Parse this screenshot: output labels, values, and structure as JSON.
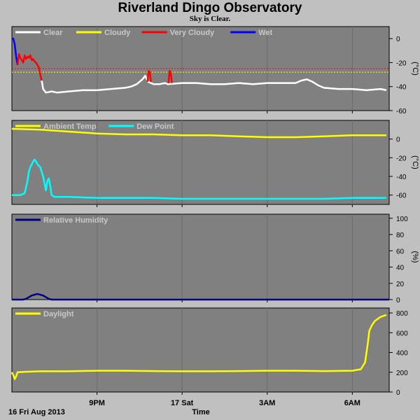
{
  "header": {
    "title": "Riverland Dingo Observatory",
    "subtitle": "Sky is Clear."
  },
  "xaxis": {
    "date_label": "16 Fri Aug 2013",
    "title": "Time",
    "ticks": [
      {
        "label": "9PM",
        "hour": 3
      },
      {
        "label": "17 Sat",
        "hour": 6
      },
      {
        "label": "3AM",
        "hour": 9
      },
      {
        "label": "6AM",
        "hour": 12
      }
    ],
    "range_hours": [
      0,
      13.3
    ]
  },
  "colors": {
    "plot_bg": "#808080",
    "frame_bg": "#c0c0c0",
    "clear": "#ffffff",
    "cloudy": "#ffff00",
    "very_cloudy": "#ff0000",
    "wet": "#0000ff",
    "ambient": "#ffff00",
    "dew": "#00ffff",
    "humidity": "#000080",
    "daylight": "#ffff00"
  },
  "chart_data": [
    {
      "type": "line",
      "panel": "sky",
      "unit": "(°C)",
      "ylim": [
        -60,
        10
      ],
      "yticks": [
        0,
        -20,
        -40,
        -60
      ],
      "threshold_lines": [
        {
          "y": -25,
          "color": "#ff0000"
        },
        {
          "y": -28,
          "color": "#ffff00"
        }
      ],
      "legend": [
        "Clear",
        "Cloudy",
        "Very Cloudy",
        "Wet"
      ],
      "series": [
        {
          "name": "Wet",
          "color_key": "wet",
          "x": [
            0.0,
            0.05,
            0.1,
            0.15,
            0.2
          ],
          "y": [
            0,
            0,
            -5,
            -15,
            -22
          ]
        },
        {
          "name": "Very Cloudy",
          "color_key": "very_cloudy",
          "x": [
            0.2,
            0.25,
            0.3,
            0.35,
            0.4,
            0.45,
            0.5,
            0.55,
            0.6,
            0.65,
            0.7,
            0.75,
            0.8,
            0.85,
            0.9,
            0.95,
            1.0,
            1.05
          ],
          "y": [
            -22,
            -13,
            -16,
            -18,
            -20,
            -14,
            -17,
            -15,
            -16,
            -14,
            -18,
            -17,
            -19,
            -20,
            -22,
            -24,
            -30,
            -35
          ]
        },
        {
          "name": "Clear",
          "color_key": "clear",
          "x": [
            1.05,
            1.1,
            1.2,
            1.4,
            1.6,
            2.0,
            2.5,
            3.0,
            3.5,
            4.0,
            4.2,
            4.4,
            4.6,
            4.7,
            4.8,
            5.0,
            5.2,
            5.4,
            5.5,
            6.0,
            6.5,
            7.0,
            7.5,
            8.0,
            8.5,
            9.0,
            9.5,
            10.0,
            10.2,
            10.4,
            10.6,
            10.8,
            11.0,
            11.5,
            12.0,
            12.5,
            13.0,
            13.2
          ],
          "y": [
            -35,
            -42,
            -45,
            -44,
            -45,
            -44,
            -43,
            -43,
            -42,
            -41,
            -40,
            -38,
            -34,
            -31,
            -36,
            -38,
            -38,
            -37,
            -38,
            -37,
            -37,
            -38,
            -38,
            -37,
            -38,
            -37,
            -37,
            -37,
            -35,
            -34,
            -36,
            -39,
            -41,
            -42,
            -42,
            -43,
            -42,
            -43
          ]
        },
        {
          "name": "Very Cloudy",
          "color_key": "very_cloudy",
          "x": [
            4.78,
            4.82,
            4.86,
            4.9
          ],
          "y": [
            -36,
            -27,
            -28,
            -36
          ]
        },
        {
          "name": "Very Cloudy",
          "color_key": "very_cloudy",
          "x": [
            5.52,
            5.56,
            5.6,
            5.64
          ],
          "y": [
            -37,
            -27,
            -28,
            -37
          ]
        }
      ]
    },
    {
      "type": "line",
      "panel": "temperature",
      "unit": "(°C)",
      "ylim": [
        -70,
        20
      ],
      "yticks": [
        0,
        -20,
        -40,
        -60
      ],
      "legend": [
        "Ambient Temp",
        "Dew Point"
      ],
      "series": [
        {
          "name": "Ambient Temp",
          "color_key": "ambient",
          "x": [
            0,
            1,
            2,
            3,
            4,
            5,
            6,
            7,
            8,
            9,
            10,
            11,
            12,
            13,
            13.2
          ],
          "y": [
            11,
            10,
            8,
            6,
            5,
            5,
            4,
            4,
            3,
            2,
            2,
            3,
            4,
            4,
            4
          ]
        },
        {
          "name": "Dew Point",
          "color_key": "dew",
          "x": [
            0,
            0.3,
            0.45,
            0.55,
            0.6,
            0.65,
            0.7,
            0.75,
            0.8,
            0.85,
            0.9,
            1.0,
            1.1,
            1.2,
            1.25,
            1.3,
            1.35,
            1.4,
            1.45,
            1.5,
            2.0,
            3.0,
            4.0,
            5.0,
            6.0,
            7.0,
            8.0,
            9.0,
            10.0,
            11.0,
            12.0,
            13.0,
            13.2
          ],
          "y": [
            -60,
            -60,
            -58,
            -45,
            -35,
            -30,
            -27,
            -24,
            -22,
            -24,
            -27,
            -30,
            -40,
            -55,
            -45,
            -42,
            -50,
            -60,
            -61,
            -62,
            -62,
            -63,
            -63,
            -63,
            -64,
            -64,
            -64,
            -64,
            -64,
            -64,
            -63,
            -63,
            -63
          ]
        }
      ]
    },
    {
      "type": "line",
      "panel": "humidity",
      "unit": "(%)",
      "ylim": [
        0,
        105
      ],
      "yticks": [
        100,
        80,
        60,
        40,
        20,
        0
      ],
      "legend": [
        "Relative Humidity"
      ],
      "series": [
        {
          "name": "Relative Humidity",
          "color_key": "humidity",
          "x": [
            0,
            0.4,
            0.5,
            0.6,
            0.7,
            0.8,
            0.9,
            1.0,
            1.1,
            1.2,
            1.3,
            1.4,
            13.3
          ],
          "y": [
            0,
            0,
            1,
            3,
            5,
            6,
            7,
            6,
            5,
            3,
            1,
            0,
            0
          ]
        }
      ]
    },
    {
      "type": "line",
      "panel": "daylight",
      "unit": "",
      "ylim": [
        0,
        850
      ],
      "yticks": [
        800,
        600,
        400,
        200,
        0
      ],
      "legend": [
        "Daylight"
      ],
      "series": [
        {
          "name": "Daylight",
          "color_key": "daylight",
          "x": [
            0,
            0.05,
            0.1,
            0.15,
            0.2,
            0.5,
            1,
            2,
            3,
            4,
            5,
            6,
            7,
            8,
            9,
            10,
            11,
            12,
            12.3,
            12.45,
            12.55,
            12.6,
            12.7,
            12.8,
            13.0,
            13.2
          ],
          "y": [
            200,
            170,
            130,
            160,
            200,
            205,
            210,
            210,
            215,
            215,
            212,
            210,
            210,
            212,
            215,
            215,
            212,
            215,
            230,
            300,
            500,
            620,
            680,
            720,
            760,
            780
          ]
        }
      ]
    }
  ]
}
